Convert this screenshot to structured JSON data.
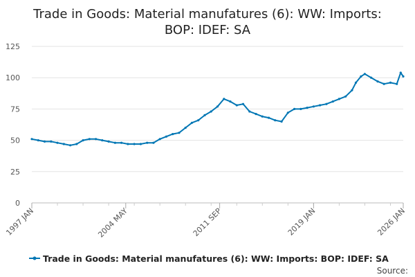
{
  "chart_data": {
    "type": "line",
    "title_lines": [
      "Trade in Goods: Material manufatures (6): WW: Imports:",
      "BOP: IDEF: SA"
    ],
    "xlabel": "",
    "ylabel": "",
    "ylim": [
      0,
      125
    ],
    "y_ticks": [
      0,
      25,
      50,
      75,
      100,
      125
    ],
    "x_range": [
      "1997 JAN",
      "2026 JAN"
    ],
    "x_tick_labels": [
      "1997 JAN",
      "2004 MAY",
      "2011 SEP",
      "2019 JAN",
      "2026 JAN"
    ],
    "series": [
      {
        "name": "Trade in Goods: Material manufatures (6): WW: Imports: BOP: IDEF: SA",
        "color": "#0076b4",
        "x": [
          1997.0,
          1997.5,
          1998.0,
          1998.5,
          1999.0,
          1999.5,
          2000.0,
          2000.5,
          2001.0,
          2001.5,
          2002.0,
          2002.5,
          2003.0,
          2003.5,
          2004.0,
          2004.5,
          2005.0,
          2005.5,
          2006.0,
          2006.5,
          2007.0,
          2007.5,
          2008.0,
          2008.5,
          2009.0,
          2009.5,
          2010.0,
          2010.5,
          2011.0,
          2011.5,
          2012.0,
          2012.5,
          2013.0,
          2013.5,
          2014.0,
          2014.5,
          2015.0,
          2015.5,
          2016.0,
          2016.5,
          2017.0,
          2017.5,
          2018.0,
          2018.5,
          2019.0,
          2019.5,
          2020.0,
          2020.5,
          2021.0,
          2021.5,
          2022.0,
          2022.3,
          2022.7,
          2023.0,
          2023.5,
          2024.0,
          2024.5,
          2025.0,
          2025.5,
          2025.8,
          2026.0
        ],
        "values": [
          51,
          50,
          49,
          49,
          48,
          47,
          46,
          47,
          50,
          51,
          51,
          50,
          49,
          48,
          48,
          47,
          47,
          47,
          48,
          48,
          51,
          53,
          55,
          56,
          60,
          64,
          66,
          70,
          73,
          77,
          83,
          81,
          78,
          79,
          73,
          71,
          69,
          68,
          66,
          65,
          72,
          75,
          75,
          76,
          77,
          78,
          79,
          81,
          83,
          85,
          90,
          96,
          101,
          103,
          100,
          97,
          95,
          96,
          95,
          104,
          101
        ]
      }
    ],
    "legend_position": "bottom"
  },
  "legend": {
    "label": "Trade in Goods: Material manufatures (6): WW: Imports: BOP: IDEF: SA"
  },
  "footer": {
    "source_label": "Source:"
  }
}
